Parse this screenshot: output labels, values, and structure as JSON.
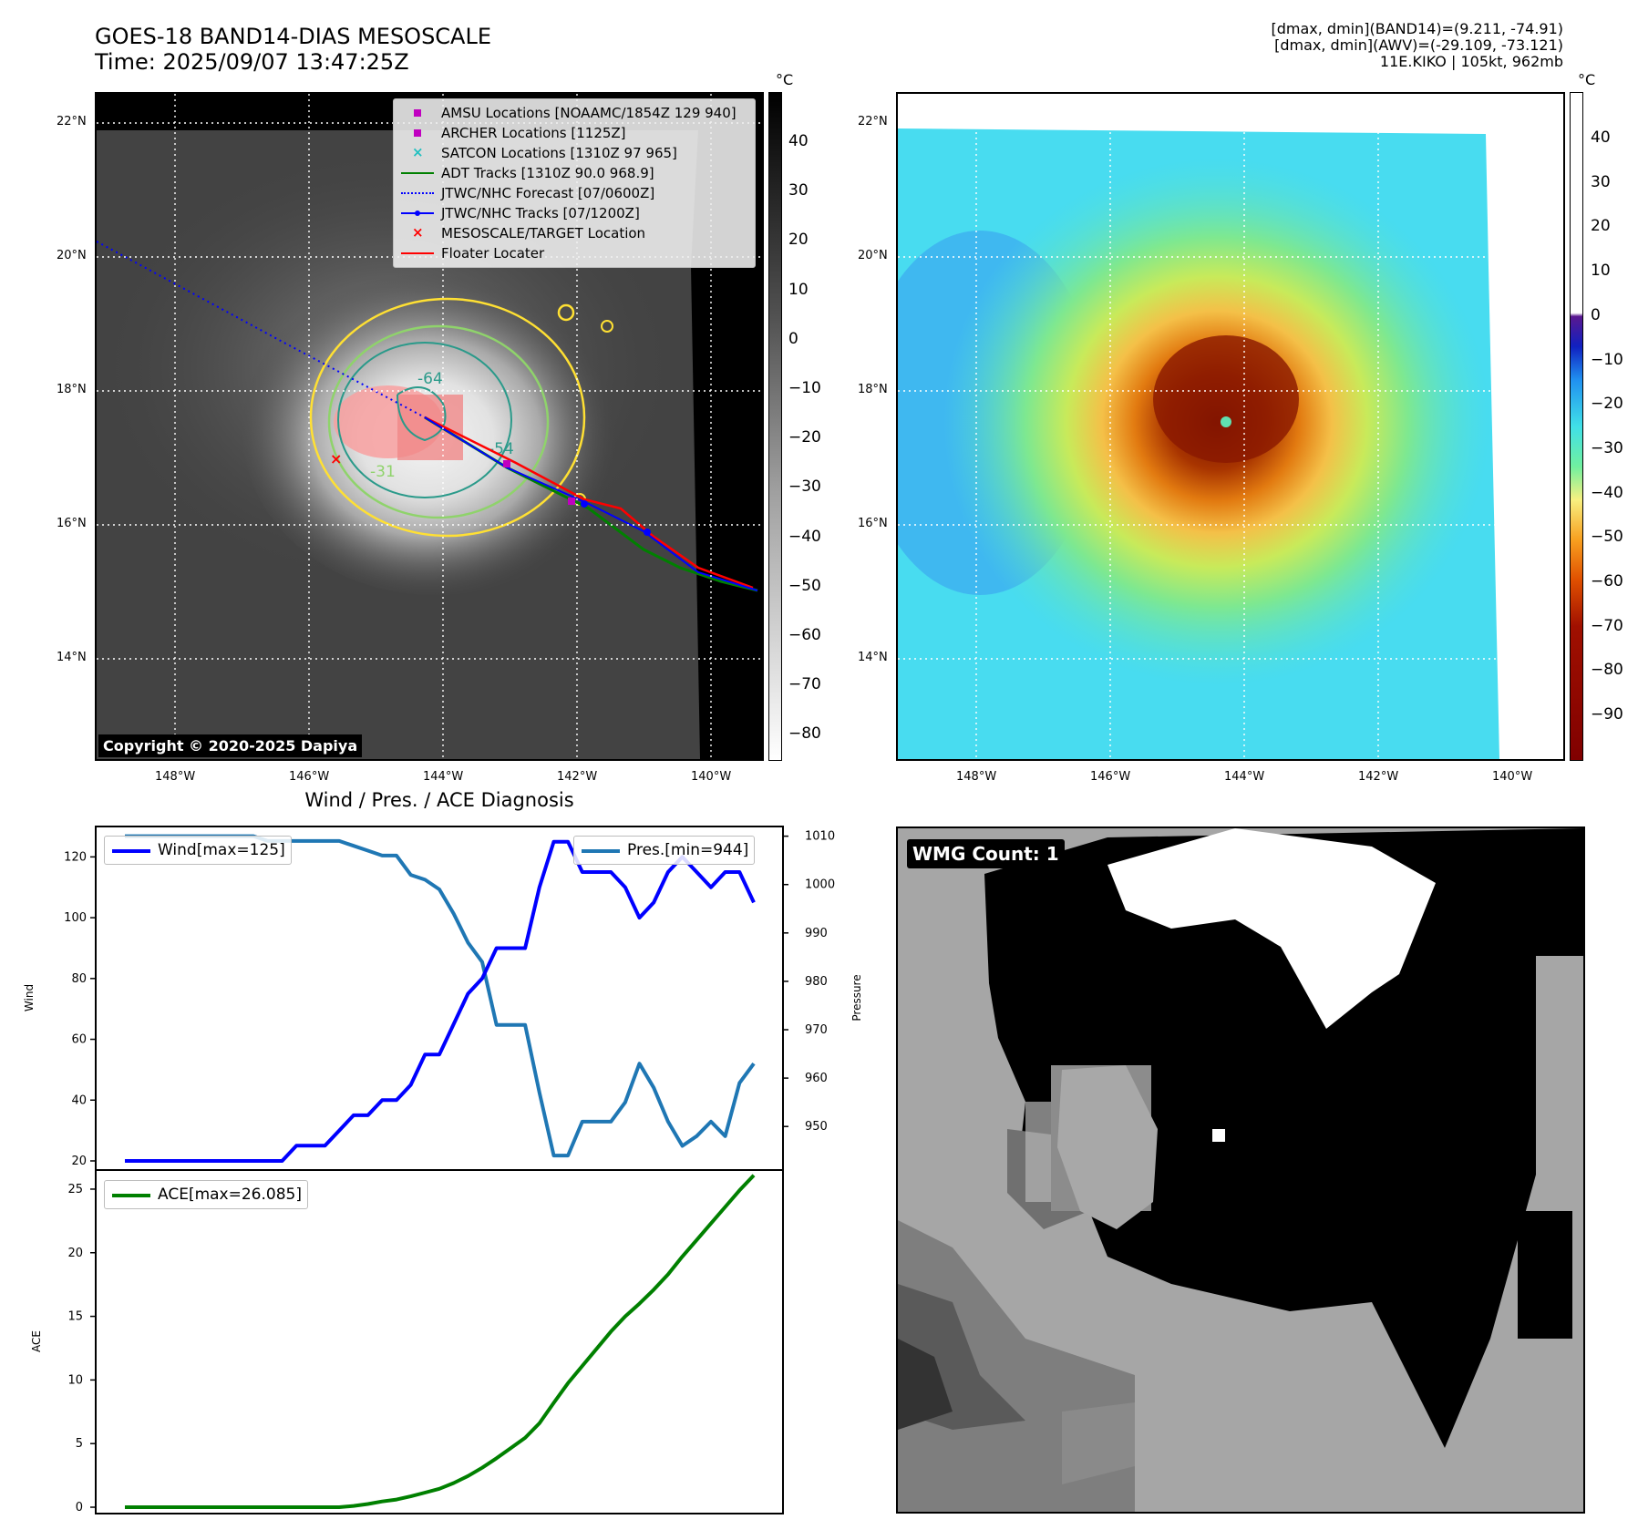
{
  "header": {
    "title_line1": "GOES-18 BAND14-DIAS MESOSCALE",
    "title_line2": "Time: 2025/09/07 13:47:25Z",
    "right_line1": "[dmax, dmin](BAND14)=(9.211, -74.91)",
    "right_line2": "[dmax, dmin](AWV)=(-29.109, -73.121)",
    "right_line3": "11E.KIKO | 105kt, 962mb"
  },
  "ir_panel": {
    "lat_labels": [
      "22°N",
      "20°N",
      "18°N",
      "16°N",
      "14°N"
    ],
    "lon_labels": [
      "148°W",
      "146°W",
      "144°W",
      "142°W",
      "140°W"
    ],
    "copyright": "Copyright © 2020-2025 Dapiya",
    "contour_labels": [
      "-64",
      "-54",
      "-31"
    ],
    "legend": [
      {
        "label": "AMSU Locations [NOAAMC/1854Z 129 940]",
        "symbol": "square",
        "color": "#c000c0"
      },
      {
        "label": "ARCHER Locations [1125Z]",
        "symbol": "square",
        "color": "#c000c0"
      },
      {
        "label": "SATCON Locations [1310Z 97 965]",
        "symbol": "x",
        "color": "#20c0c0"
      },
      {
        "label": "ADT Tracks [1310Z 90.0 968.9]",
        "symbol": "line",
        "color": "#008000"
      },
      {
        "label": "JTWC/NHC Forecast [07/0600Z]",
        "symbol": "dotted",
        "color": "#0000ff"
      },
      {
        "label": "JTWC/NHC Tracks [07/1200Z]",
        "symbol": "line-dot",
        "color": "#0000ff"
      },
      {
        "label": "MESOSCALE/TARGET Location",
        "symbol": "x",
        "color": "#ff0000"
      },
      {
        "label": "Floater Locater",
        "symbol": "line",
        "color": "#ff0000"
      }
    ],
    "colorbar": {
      "unit": "°C",
      "ticks": [
        "40",
        "30",
        "20",
        "10",
        "0",
        "−10",
        "−20",
        "−30",
        "−40",
        "−50",
        "−60",
        "−70",
        "−80"
      ]
    }
  },
  "awv_panel": {
    "lat_labels": [
      "22°N",
      "20°N",
      "18°N",
      "16°N",
      "14°N"
    ],
    "lon_labels": [
      "148°W",
      "146°W",
      "144°W",
      "142°W",
      "140°W"
    ],
    "colorbar": {
      "unit": "°C",
      "ticks": [
        "40",
        "30",
        "20",
        "10",
        "0",
        "−10",
        "−20",
        "−30",
        "−40",
        "−50",
        "−60",
        "−70",
        "−80",
        "−90"
      ]
    }
  },
  "wmg_panel": {
    "label": "WMG Count: 1"
  },
  "colors": {
    "wind": "#0000ff",
    "pres": "#1f77b4",
    "ace": "#008000",
    "track_red": "#ff0000",
    "contour_yellow": "#ffe033",
    "contour_green": "#8fd36b",
    "contour_teal": "#2a9a8a"
  },
  "chart_data": [
    {
      "type": "line",
      "title": "Wind / Pres. / ACE Diagnosis",
      "ylabel": "Wind",
      "y2label": "Pressure",
      "ylim": [
        17,
        130
      ],
      "y2lim": [
        941,
        1012
      ],
      "yticks": [
        20,
        40,
        60,
        80,
        100,
        120
      ],
      "y2ticks": [
        950,
        960,
        970,
        980,
        990,
        1000,
        1010
      ],
      "series": [
        {
          "name": "Wind[max=125]",
          "axis": "left",
          "values": [
            20,
            20,
            20,
            20,
            20,
            20,
            20,
            20,
            20,
            20,
            20,
            20,
            25,
            25,
            25,
            30,
            35,
            35,
            40,
            40,
            45,
            55,
            55,
            65,
            75,
            80,
            90,
            90,
            90,
            110,
            125,
            125,
            115,
            115,
            115,
            110,
            100,
            105,
            115,
            120,
            115,
            110,
            115,
            115,
            105
          ]
        },
        {
          "name": "Pres.[min=944]",
          "axis": "right",
          "values": [
            1010,
            1010,
            1010,
            1010,
            1010,
            1010,
            1010,
            1010,
            1010,
            1010,
            1009,
            1009,
            1009,
            1009,
            1009,
            1009,
            1008,
            1007,
            1006,
            1006,
            1002,
            1001,
            999,
            994,
            988,
            984,
            971,
            971,
            971,
            957,
            944,
            944,
            951,
            951,
            951,
            955,
            963,
            958,
            951,
            946,
            948,
            951,
            948,
            959,
            963
          ]
        }
      ]
    },
    {
      "type": "line",
      "ylabel": "ACE",
      "ylim": [
        -0.5,
        26.5
      ],
      "yticks": [
        0,
        5,
        10,
        15,
        20,
        25
      ],
      "series": [
        {
          "name": "ACE[max=26.085]",
          "values": [
            0,
            0,
            0,
            0,
            0,
            0,
            0,
            0,
            0,
            0,
            0,
            0,
            0,
            0,
            0,
            0,
            0.1,
            0.25,
            0.45,
            0.6,
            0.85,
            1.15,
            1.45,
            1.9,
            2.45,
            3.1,
            3.85,
            4.65,
            5.45,
            6.6,
            8.2,
            9.75,
            11.1,
            12.45,
            13.8,
            15,
            16,
            17.1,
            18.3,
            19.7,
            21,
            22.3,
            23.6,
            24.9,
            26.085
          ]
        }
      ]
    }
  ]
}
